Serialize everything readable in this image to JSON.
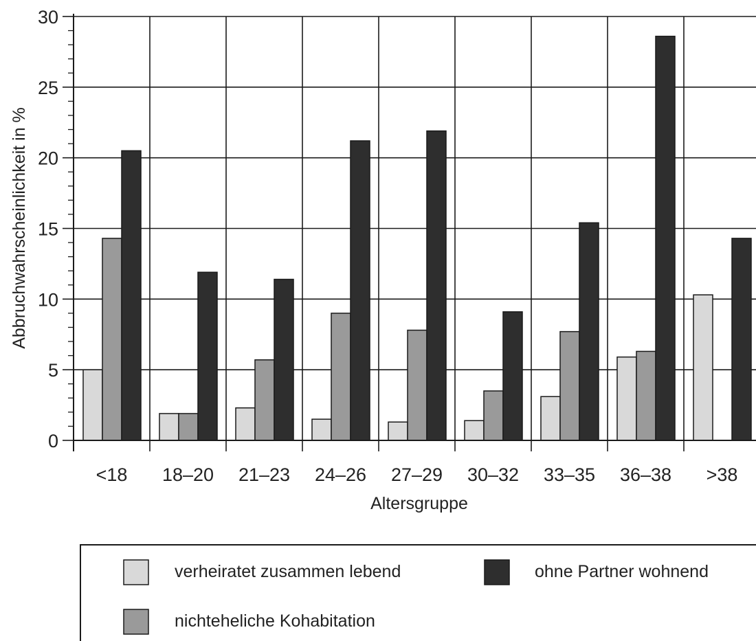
{
  "chart_data": {
    "type": "bar",
    "xlabel": "Altersgruppe",
    "ylabel": "Abbruchwahrscheinlichkeit in %",
    "ylim": [
      0,
      30
    ],
    "yticks": [
      0,
      5,
      10,
      15,
      20,
      25,
      30
    ],
    "grid": "on",
    "legend_placement": "bottom",
    "categories": [
      "<18",
      "18–20",
      "21–23",
      "24–26",
      "27–29",
      "30–32",
      "33–35",
      "36–38",
      ">38"
    ],
    "series": [
      {
        "name": "verheiratet zusammen lebend",
        "color": "#d9d9d9",
        "values": [
          5.0,
          1.9,
          2.3,
          1.5,
          1.3,
          1.4,
          3.1,
          5.9,
          10.3
        ]
      },
      {
        "name": "nichteheliche Kohabitation",
        "color": "#9a9a9a",
        "values": [
          14.3,
          1.9,
          5.7,
          9.0,
          7.8,
          3.5,
          7.7,
          6.3,
          0
        ]
      },
      {
        "name": "ohne Partner wohnend",
        "color": "#2e2e2e",
        "values": [
          20.5,
          11.9,
          11.4,
          21.2,
          21.9,
          9.1,
          15.4,
          28.6,
          14.3
        ]
      }
    ]
  }
}
